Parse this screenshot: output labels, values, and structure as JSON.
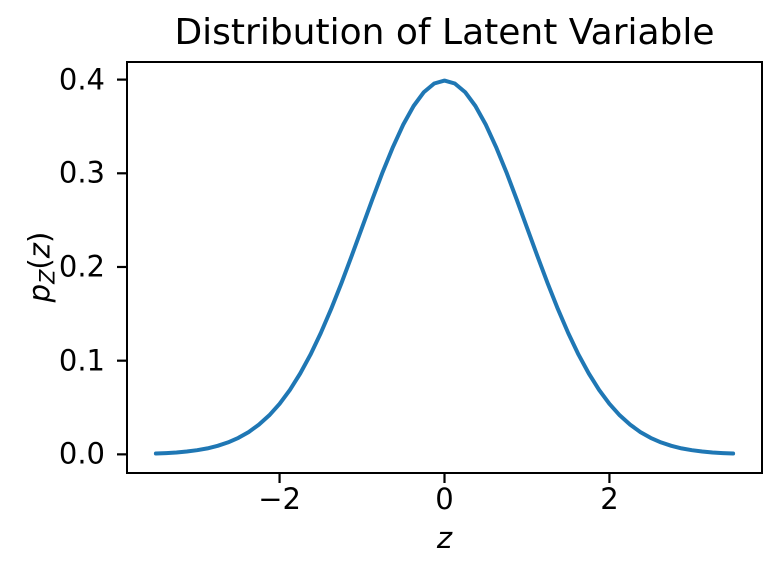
{
  "chart_data": {
    "type": "line",
    "title": "Distribution of Latent Variable",
    "xlabel": "z",
    "ylabel": "p_Z(z)",
    "ylabel_rich": {
      "base": "p",
      "sub": "Z",
      "open": "(",
      "arg": "z",
      "close": ")"
    },
    "xlim": [
      -3.85,
      3.85
    ],
    "ylim": [
      -0.0199,
      0.4188
    ],
    "xticks": [
      -2,
      0,
      2
    ],
    "xtick_labels": [
      "−2",
      "0",
      "2"
    ],
    "yticks": [
      0.0,
      0.1,
      0.2,
      0.3,
      0.4
    ],
    "ytick_labels": [
      "0.0",
      "0.1",
      "0.2",
      "0.3",
      "0.4"
    ],
    "grid": false,
    "legend": "none",
    "line_color": "#1f77b4",
    "line_width": 4,
    "axes_color": "#000000",
    "background_color": "#ffffff",
    "series": [
      {
        "name": "standard-normal-pdf",
        "x": [
          -3.5,
          -3.375,
          -3.25,
          -3.125,
          -3,
          -2.875,
          -2.75,
          -2.625,
          -2.5,
          -2.375,
          -2.25,
          -2.125,
          -2,
          -1.875,
          -1.75,
          -1.625,
          -1.5,
          -1.375,
          -1.25,
          -1.125,
          -1,
          -0.875,
          -0.75,
          -0.625,
          -0.5,
          -0.375,
          -0.25,
          -0.125,
          0,
          0.125,
          0.25,
          0.375,
          0.5,
          0.625,
          0.75,
          0.875,
          1,
          1.125,
          1.25,
          1.375,
          1.5,
          1.625,
          1.75,
          1.875,
          2,
          2.125,
          2.25,
          2.375,
          2.5,
          2.625,
          2.75,
          2.875,
          3,
          3.125,
          3.25,
          3.375,
          3.5
        ],
        "y": [
          0.00087,
          0.00134,
          0.00203,
          0.00302,
          0.00443,
          0.0064,
          0.0091,
          0.01272,
          0.01753,
          0.02377,
          0.03174,
          0.04172,
          0.05399,
          0.06879,
          0.08628,
          0.10652,
          0.12952,
          0.15501,
          0.18265,
          0.21189,
          0.24197,
          0.27205,
          0.30114,
          0.32816,
          0.35207,
          0.37186,
          0.38667,
          0.39584,
          0.39894,
          0.39584,
          0.38667,
          0.37186,
          0.35207,
          0.32816,
          0.30114,
          0.27205,
          0.24197,
          0.21189,
          0.18265,
          0.15501,
          0.12952,
          0.10652,
          0.08628,
          0.06879,
          0.05399,
          0.04172,
          0.03174,
          0.02377,
          0.01753,
          0.01272,
          0.0091,
          0.0064,
          0.00443,
          0.00302,
          0.00203,
          0.00134,
          0.00087
        ]
      }
    ]
  }
}
